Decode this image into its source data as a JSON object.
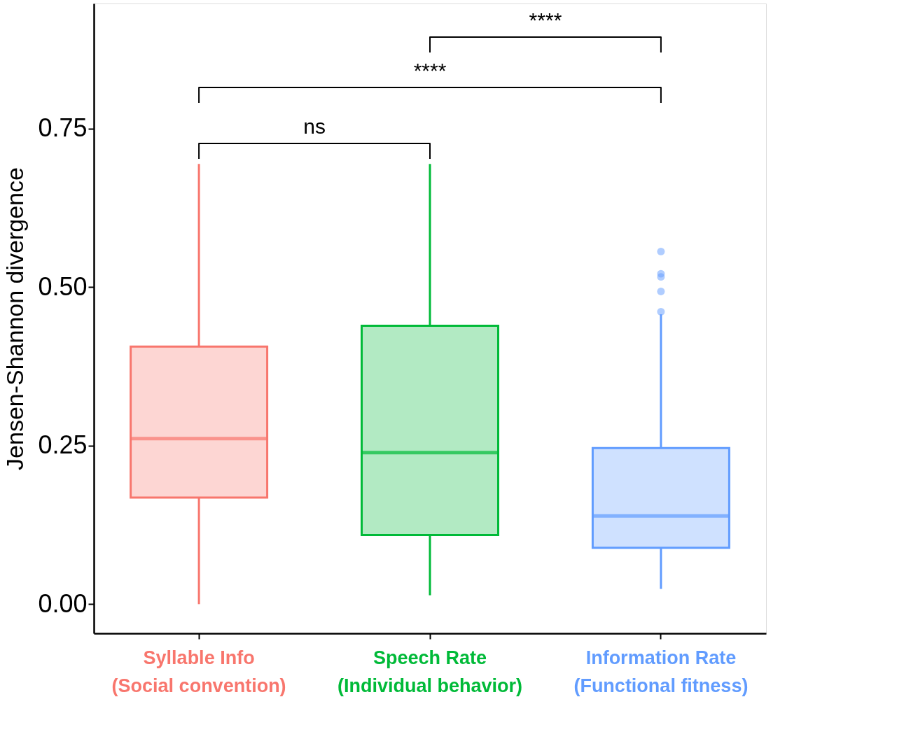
{
  "chart_data": {
    "type": "box",
    "categories": [
      "Syllable Info\n(Social convention)",
      "Speech Rate\n(Individual behavior)",
      "Information Rate\n(Functional fitness)"
    ],
    "colors": [
      "#f8766d",
      "#00ba38",
      "#619cff"
    ],
    "boxes": [
      {
        "low": 0.0,
        "q1": 0.168,
        "median": 0.261,
        "q3": 0.406,
        "high": 0.694
      },
      {
        "low": 0.014,
        "q1": 0.109,
        "median": 0.239,
        "q3": 0.439,
        "high": 0.694
      },
      {
        "low": 0.024,
        "q1": 0.089,
        "median": 0.139,
        "q3": 0.246,
        "high": 0.457,
        "outliers": [
          0.556,
          0.521,
          0.516,
          0.493,
          0.461
        ]
      }
    ],
    "ylabel": "Jensen-Shannon divergence",
    "ylim": [
      -0.046,
      0.947
    ],
    "yticks": [
      {
        "value": 0,
        "label": "0.00"
      },
      {
        "value": 0.25,
        "label": "0.25"
      },
      {
        "value": 0.5,
        "label": "0.50"
      },
      {
        "value": 0.75,
        "label": "0.75"
      }
    ],
    "annotations": [
      "ns",
      "****",
      "****"
    ],
    "grid": false,
    "legend": false
  }
}
